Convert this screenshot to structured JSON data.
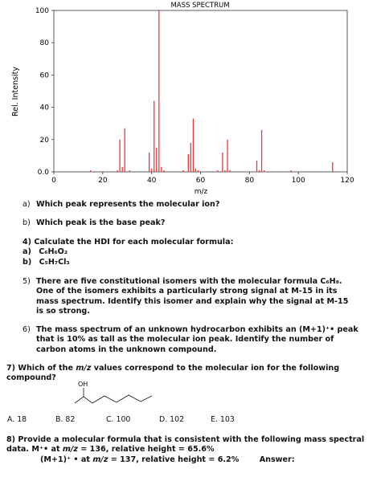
{
  "chart_data": {
    "type": "bar",
    "title": "MASS SPECTRUM",
    "xlabel": "m/z",
    "ylabel": "Rel. Intensity",
    "xlim": [
      0,
      120
    ],
    "ylim": [
      0,
      100
    ],
    "x_ticks": [
      "0",
      "20",
      "40",
      "60",
      "80",
      "100",
      "120"
    ],
    "y_ticks": [
      "0.0",
      "20",
      "40",
      "60",
      "80",
      "100"
    ],
    "grid": false,
    "color": "#e63a3a",
    "x": [
      15,
      26,
      27,
      28,
      29,
      31,
      39,
      40,
      41,
      42,
      43,
      44,
      45,
      53,
      55,
      56,
      57,
      58,
      59,
      67,
      69,
      70,
      71,
      72,
      83,
      84,
      85,
      86,
      97,
      114
    ],
    "values": [
      1,
      1,
      20,
      3,
      27,
      1,
      12,
      2,
      44,
      15,
      100,
      3,
      1,
      1,
      11,
      18,
      33,
      2,
      1,
      1,
      12,
      1,
      20,
      1,
      7,
      1,
      26,
      1,
      1,
      6
    ]
  },
  "questions": {
    "a": {
      "label": "a)",
      "text": "Which peak represents the molecular ion?"
    },
    "b": {
      "label": "b)",
      "text": "Which peak is the base peak?"
    },
    "q4": {
      "line1": "4)  Calculate the HDI for each molecular formula:",
      "a_label": "a)",
      "a_formula": "C₆H₆O₂",
      "b_label": "b)",
      "b_formula": "C₅H₇Cl₃"
    },
    "q5": {
      "num": "5)",
      "text": "There are five constitutional isomers with the molecular formula C₆H₈.  One of the isomers exhibits a particularly strong signal at M-15 in its mass spectrum.  Identify this isomer and explain why the signal at M-15 is so strong."
    },
    "q6": {
      "num": "6)",
      "text": "The mass spectrum of an unknown hydrocarbon exhibits an (M+1)⁺• peak that is 10% as tall as the molecular ion peak.  Identify the number of carbon atoms in the unknown compound."
    },
    "q7": {
      "pre": "7) Which of the ",
      "mz": "m/z",
      "post": " values correspond to the molecular ion for the following compound?",
      "oh_label": "OH",
      "options": [
        "A. 18",
        "B. 82",
        "C. 100",
        "D. 102",
        "E. 103"
      ]
    },
    "q8": {
      "line1": "8) Provide a molecular formula that is consistent with the following mass spectral",
      "line2_pre": "data.    M⁺• at ",
      "mz": "m/z",
      "line2_post": " = 136, relative height = 65.6%",
      "line3_pre": "(M+1)⁺ • at ",
      "line3_post": " = 137, relative height = 6.2%",
      "answer_label": "Answer:"
    }
  }
}
